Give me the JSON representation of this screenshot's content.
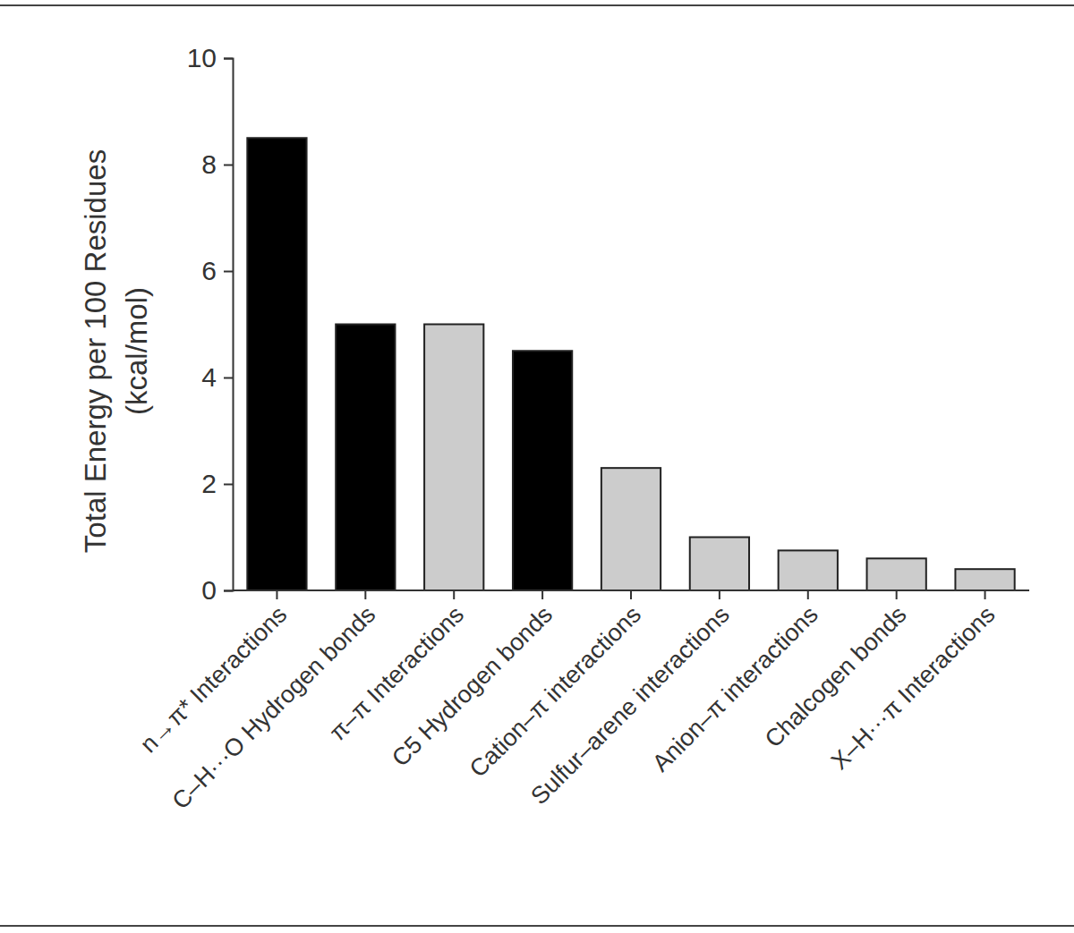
{
  "chart_data": {
    "type": "bar",
    "y_label": [
      "Total Energy per 100 Residues",
      "(kcal/mol)"
    ],
    "categories": [
      "n→π* Interactions",
      "C–H···O Hydrogen bonds",
      "π–π Interactions",
      "C5 Hydrogen bonds",
      "Cation–π interactions",
      "Sulfur–arene interactions",
      "Anion–π interactions",
      "Chalcogen bonds",
      "X–H···π Interactions"
    ],
    "values": [
      8.5,
      5.0,
      5.0,
      4.5,
      2.3,
      1.0,
      0.75,
      0.6,
      0.4
    ],
    "colors": [
      "#000000",
      "#000000",
      "#cccccc",
      "#000000",
      "#cccccc",
      "#cccccc",
      "#cccccc",
      "#cccccc",
      "#cccccc"
    ],
    "ylim": [
      0,
      10
    ],
    "yticks": [
      0,
      2,
      4,
      6,
      8,
      10
    ],
    "grid": false
  }
}
